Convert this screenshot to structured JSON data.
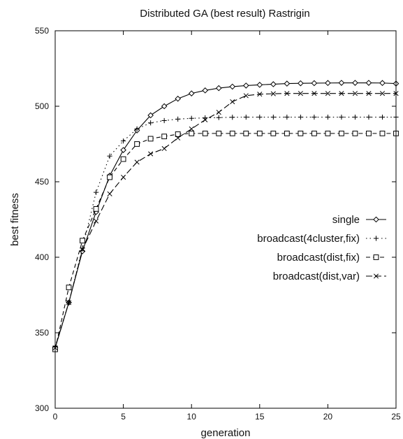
{
  "chart_data": {
    "type": "line",
    "title": "Distributed GA (best result) Rastrigin",
    "xlabel": "generation",
    "ylabel": "best fitness",
    "xlim": [
      0,
      25
    ],
    "ylim": [
      300,
      550
    ],
    "xticks": [
      0,
      5,
      10,
      15,
      20,
      25
    ],
    "yticks": [
      300,
      350,
      400,
      450,
      500,
      550
    ],
    "grid": false,
    "legend_position": "right",
    "x": [
      0,
      1,
      2,
      3,
      4,
      5,
      6,
      7,
      8,
      9,
      10,
      11,
      12,
      13,
      14,
      15,
      16,
      17,
      18,
      19,
      20,
      21,
      22,
      23,
      24,
      25
    ],
    "series": [
      {
        "name": "single",
        "marker": "diamond",
        "dash": "solid",
        "values": [
          340,
          370,
          404,
          430,
          454,
          471,
          484,
          494,
          500,
          505,
          508.5,
          510.5,
          512,
          513,
          513.7,
          514.2,
          514.6,
          515,
          515.2,
          515.3,
          515.4,
          515.5,
          515.5,
          515.5,
          515.4,
          515
        ]
      },
      {
        "name": "broadcast(4cluster,fix)",
        "marker": "plus",
        "dash": "dotted",
        "values": [
          341,
          370,
          406,
          443,
          467,
          477,
          485,
          489,
          490.5,
          491.5,
          492,
          492.3,
          492.5,
          492.7,
          492.8,
          492.8,
          492.8,
          492.8,
          492.8,
          492.8,
          492.8,
          492.8,
          492.8,
          492.8,
          492.8,
          492.8
        ]
      },
      {
        "name": "broadcast(dist,fix)",
        "marker": "square",
        "dash": "dashed",
        "values": [
          339,
          380,
          411,
          432,
          453,
          465,
          475,
          478.5,
          480,
          481.5,
          482,
          482,
          482,
          482,
          482,
          482,
          482,
          482,
          482,
          482,
          482,
          482,
          482,
          482,
          482,
          482
        ]
      },
      {
        "name": "broadcast(dist,var)",
        "marker": "cross",
        "dash": "longdash",
        "values": [
          340,
          370,
          405,
          424,
          442,
          453,
          463,
          468.5,
          472,
          479,
          485,
          491,
          496,
          503,
          507,
          508,
          508.3,
          508.5,
          508.5,
          508.5,
          508.5,
          508.5,
          508.5,
          508.5,
          508.5,
          508.5
        ]
      }
    ]
  }
}
